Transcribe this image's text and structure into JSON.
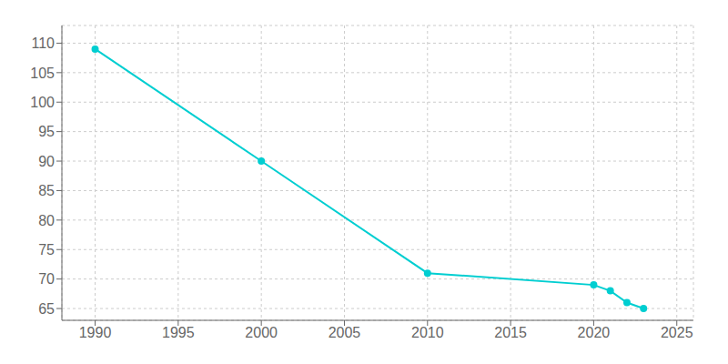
{
  "chart_data": {
    "type": "line",
    "x": [
      1990,
      2000,
      2010,
      2020,
      2021,
      2022,
      2023
    ],
    "values": [
      109,
      90,
      71,
      69,
      68,
      66,
      65
    ],
    "color": "#00CED1",
    "marker": "circle",
    "xlim": [
      1988,
      2026
    ],
    "ylim": [
      63,
      113
    ],
    "xticks": [
      1990,
      1995,
      2000,
      2005,
      2010,
      2015,
      2020,
      2025
    ],
    "yticks": [
      65,
      70,
      75,
      80,
      85,
      90,
      95,
      100,
      105,
      110
    ],
    "grid": true
  }
}
